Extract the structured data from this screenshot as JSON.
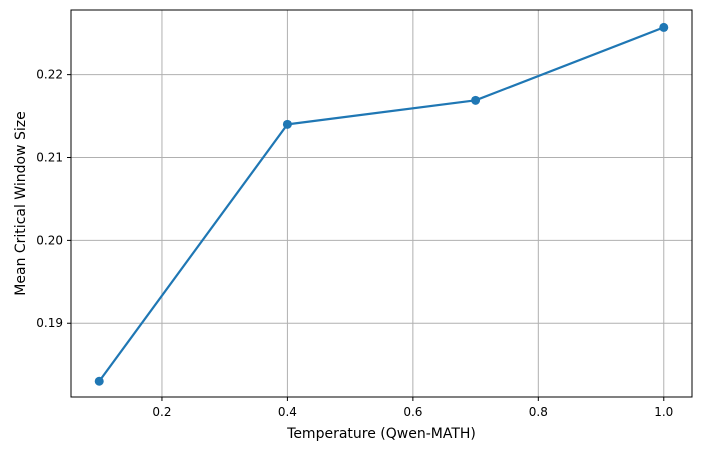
{
  "chart_data": {
    "type": "line",
    "title": "",
    "xlabel": "Temperature (Qwen-MATH)",
    "ylabel": "Mean Critical Window Size",
    "x": [
      0.1,
      0.4,
      0.7,
      1.0
    ],
    "series": [
      {
        "values": [
          0.183,
          0.214,
          0.2169,
          0.2257
        ],
        "color": "#1f77b4",
        "marker": "circle"
      }
    ],
    "xlim": [
      0.055,
      1.045
    ],
    "ylim": [
      0.1811,
      0.2278
    ],
    "xticks": [
      0.2,
      0.4,
      0.6,
      0.8,
      1.0
    ],
    "xtick_labels": [
      "0.2",
      "0.4",
      "0.6",
      "0.8",
      "1.0"
    ],
    "yticks": [
      0.19,
      0.2,
      0.21,
      0.22
    ],
    "ytick_labels": [
      "0.19",
      "0.20",
      "0.21",
      "0.22"
    ],
    "grid": true,
    "legend": false
  }
}
